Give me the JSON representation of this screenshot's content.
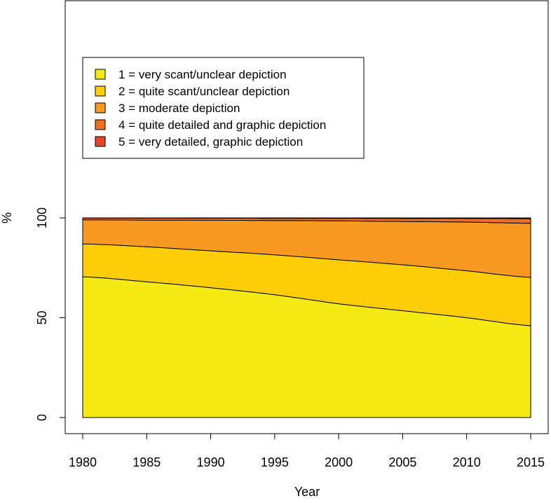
{
  "chart_data": {
    "type": "area",
    "stacked": true,
    "title": "",
    "xlabel": "Year",
    "ylabel": "%",
    "xlim": [
      1980,
      2015
    ],
    "ylim": [
      0,
      100
    ],
    "x_ticks": [
      1980,
      1985,
      1990,
      1995,
      2000,
      2005,
      2010,
      2015
    ],
    "y_ticks": [
      0,
      50,
      100
    ],
    "grid": false,
    "legend_position": "top-left",
    "x": [
      1980,
      1985,
      1990,
      1995,
      2000,
      2005,
      2010,
      2015
    ],
    "series": [
      {
        "name": "1 = very scant/unclear depiction",
        "color": "#F5EA14",
        "values": [
          70.5,
          68,
          65,
          61.5,
          57,
          53.5,
          50,
          46
        ]
      },
      {
        "name": "2 = quite scant/unclear depiction",
        "color": "#FDCD08",
        "values": [
          16.5,
          17.5,
          18.5,
          20,
          22,
          23,
          23.5,
          24.2
        ]
      },
      {
        "name": "3 = moderate depiction",
        "color": "#F89A22",
        "values": [
          12,
          13.4,
          15.3,
          17.2,
          19.5,
          21.7,
          24.4,
          27.1
        ]
      },
      {
        "name": "4 = quite detailed and graphic depiction",
        "color": "#EE6E25",
        "values": [
          0.9,
          1.0,
          1.05,
          1.1,
          1.3,
          1.5,
          1.8,
          2.3
        ]
      },
      {
        "name": "5 = very detailed, graphic depiction",
        "color": "#E6452A",
        "values": [
          0.1,
          0.1,
          0.15,
          0.2,
          0.2,
          0.3,
          0.3,
          0.4
        ]
      }
    ]
  }
}
